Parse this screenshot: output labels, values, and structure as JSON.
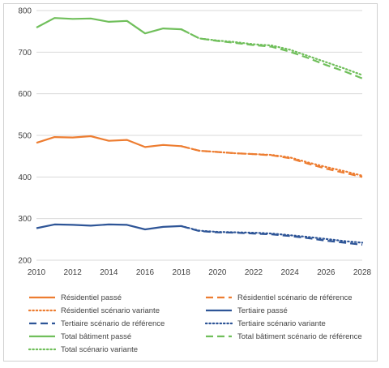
{
  "chart_data": {
    "type": "line",
    "title": "",
    "xlabel": "",
    "ylabel": "",
    "xlim": [
      2010,
      2028
    ],
    "ylim": [
      200,
      800
    ],
    "x_ticks": [
      2010,
      2012,
      2014,
      2016,
      2018,
      2020,
      2022,
      2024,
      2026,
      2028
    ],
    "y_ticks": [
      200,
      300,
      400,
      500,
      600,
      700,
      800
    ],
    "grid": "horizontal",
    "legend_position": "bottom",
    "series": [
      {
        "name": "Résidentiel passé",
        "color": "#ED7D31",
        "style": "solid",
        "x": [
          2010,
          2011,
          2012,
          2013,
          2014,
          2015,
          2016,
          2017,
          2018
        ],
        "y": [
          482,
          496,
          495,
          498,
          487,
          489,
          472,
          477,
          474
        ]
      },
      {
        "name": "Résidentiel scénario de référence",
        "color": "#ED7D31",
        "style": "dash",
        "x": [
          2018,
          2019,
          2020,
          2021,
          2022,
          2023,
          2024,
          2025,
          2026,
          2027,
          2028
        ],
        "y": [
          474,
          463,
          460,
          457,
          455,
          452,
          445,
          432,
          420,
          410,
          400
        ]
      },
      {
        "name": "Résidentiel scénario variante",
        "color": "#ED7D31",
        "style": "dot",
        "x": [
          2018,
          2019,
          2020,
          2021,
          2022,
          2023,
          2024,
          2025,
          2026,
          2027,
          2028
        ],
        "y": [
          474,
          463,
          460,
          457,
          455,
          453,
          447,
          435,
          424,
          414,
          403
        ]
      },
      {
        "name": "Tertiaire passé",
        "color": "#2E5597",
        "style": "solid",
        "x": [
          2010,
          2011,
          2012,
          2013,
          2014,
          2015,
          2016,
          2017,
          2018
        ],
        "y": [
          277,
          286,
          285,
          283,
          286,
          285,
          274,
          280,
          282
        ]
      },
      {
        "name": "Tertiaire scénario de référence",
        "color": "#2E5597",
        "style": "dash",
        "x": [
          2018,
          2019,
          2020,
          2021,
          2022,
          2023,
          2024,
          2025,
          2026,
          2027,
          2028
        ],
        "y": [
          282,
          270,
          267,
          266,
          264,
          262,
          258,
          253,
          247,
          242,
          237
        ]
      },
      {
        "name": "Tertiaire scénario variante",
        "color": "#2E5597",
        "style": "dot",
        "x": [
          2018,
          2019,
          2020,
          2021,
          2022,
          2023,
          2024,
          2025,
          2026,
          2027,
          2028
        ],
        "y": [
          282,
          271,
          268,
          267,
          266,
          264,
          260,
          256,
          251,
          246,
          242
        ]
      },
      {
        "name": "Total bâtiment passé",
        "color": "#70BF5B",
        "style": "solid",
        "x": [
          2010,
          2011,
          2012,
          2013,
          2014,
          2015,
          2016,
          2017,
          2018
        ],
        "y": [
          759,
          782,
          780,
          781,
          773,
          775,
          745,
          757,
          755
        ]
      },
      {
        "name": "Total bâtiment scénario de référence",
        "color": "#70BF5B",
        "style": "dash",
        "x": [
          2018,
          2019,
          2020,
          2021,
          2022,
          2023,
          2024,
          2025,
          2026,
          2027,
          2028
        ],
        "y": [
          755,
          733,
          727,
          722,
          717,
          713,
          701,
          686,
          669,
          654,
          637
        ]
      },
      {
        "name": "Total scénario variante",
        "color": "#70BF5B",
        "style": "dot",
        "x": [
          2018,
          2019,
          2020,
          2021,
          2022,
          2023,
          2024,
          2025,
          2026,
          2027,
          2028
        ],
        "y": [
          755,
          733,
          728,
          724,
          719,
          716,
          706,
          691,
          676,
          661,
          645
        ]
      }
    ]
  }
}
